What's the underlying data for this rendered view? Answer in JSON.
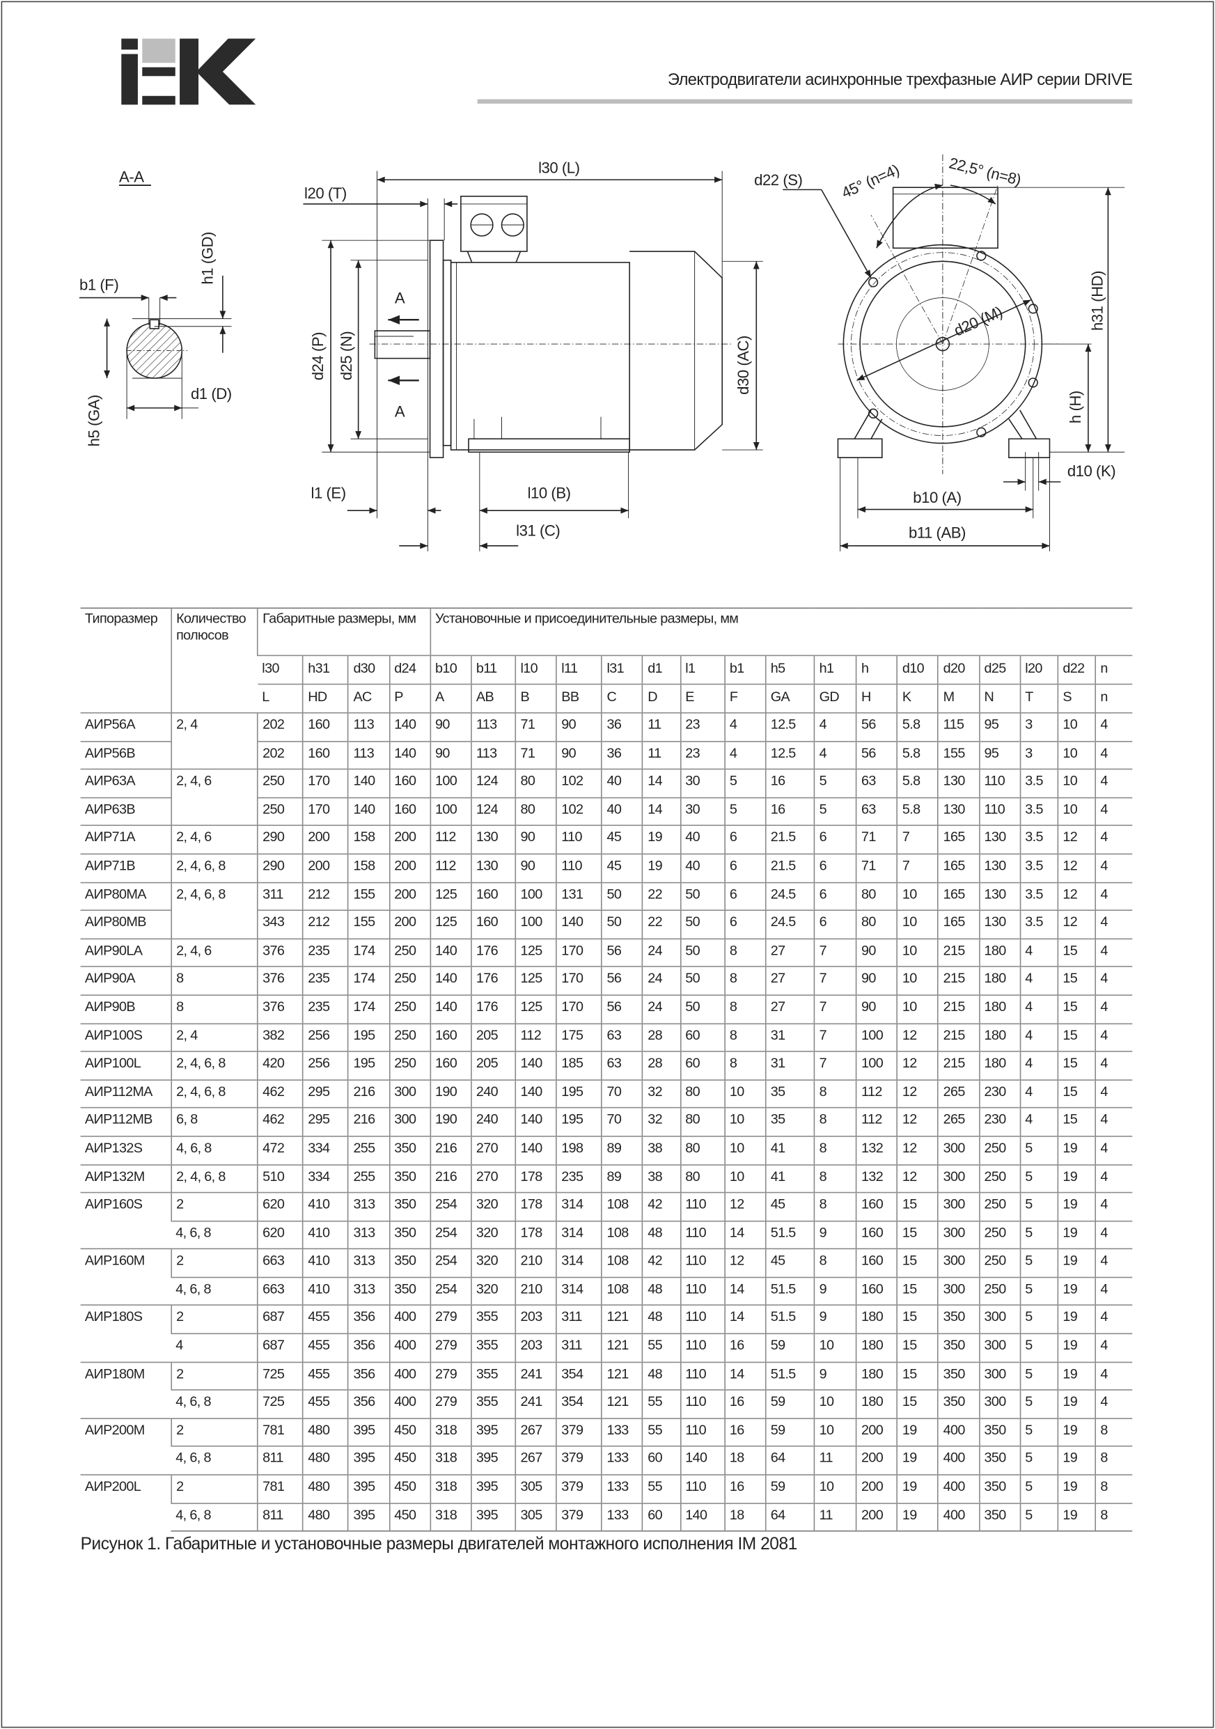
{
  "header": {
    "logo_text": "IEK",
    "title": "Электродвигатели асинхронные трехфазные АИР серии DRIVE",
    "accent_gray": "#bdbdbd"
  },
  "drawing": {
    "section_label": "A-A",
    "section": {
      "b1": "b1 (F)",
      "h1": "h1 (GD)",
      "d1": "d1 (D)",
      "h5": "h5 (GA)"
    },
    "side": {
      "l30": "l30 (L)",
      "l20": "l20 (T)",
      "d24": "d24 (P)",
      "d25": "d25 (N)",
      "d30": "d30 (AC)",
      "a_top": "A",
      "a_bottom": "A",
      "l1": "l1 (E)",
      "l10": "l10 (B)",
      "l31": "l31 (C)"
    },
    "front": {
      "d22": "d22  (S)",
      "angle45": "45° (n=4)",
      "angle22": "22,5° (n=8)",
      "d20": "d20 (M)",
      "h31": "h31 (HD)",
      "h": "h (H)",
      "d10": "d10 (K)",
      "b10": "b10 (A)",
      "b11": "b11 (AB)"
    }
  },
  "table": {
    "headers": {
      "type": "Типоразмер",
      "poles": "Количество полюсов",
      "overall": "Габаритные размеры, мм",
      "mounting": "Установочные и присоединительные размеры, мм"
    },
    "codes": [
      "l30",
      "h31",
      "d30",
      "d24",
      "b10",
      "b11",
      "l10",
      "l11",
      "l31",
      "d1",
      "l1",
      "b1",
      "h5",
      "h1",
      "h",
      "d10",
      "d20",
      "d25",
      "l20",
      "d22",
      "n"
    ],
    "letters": [
      "L",
      "HD",
      "AC",
      "P",
      "A",
      "AB",
      "B",
      "BB",
      "C",
      "D",
      "E",
      "F",
      "GA",
      "GD",
      "H",
      "K",
      "M",
      "N",
      "T",
      "S",
      "n"
    ],
    "rows": [
      {
        "type": "АИР56A",
        "poles": "2, 4",
        "v": [
          "202",
          "160",
          "113",
          "140",
          "90",
          "113",
          "71",
          "90",
          "36",
          "11",
          "23",
          "4",
          "12.5",
          "4",
          "56",
          "5.8",
          "115",
          "95",
          "3",
          "10",
          "4"
        ]
      },
      {
        "type": "АИР56B",
        "poles": "",
        "v": [
          "202",
          "160",
          "113",
          "140",
          "90",
          "113",
          "71",
          "90",
          "36",
          "11",
          "23",
          "4",
          "12.5",
          "4",
          "56",
          "5.8",
          "155",
          "95",
          "3",
          "10",
          "4"
        ]
      },
      {
        "type": "АИР63A",
        "poles": "2, 4, 6",
        "v": [
          "250",
          "170",
          "140",
          "160",
          "100",
          "124",
          "80",
          "102",
          "40",
          "14",
          "30",
          "5",
          "16",
          "5",
          "63",
          "5.8",
          "130",
          "110",
          "3.5",
          "10",
          "4"
        ]
      },
      {
        "type": "АИР63B",
        "poles": "",
        "v": [
          "250",
          "170",
          "140",
          "160",
          "100",
          "124",
          "80",
          "102",
          "40",
          "14",
          "30",
          "5",
          "16",
          "5",
          "63",
          "5.8",
          "130",
          "110",
          "3.5",
          "10",
          "4"
        ]
      },
      {
        "type": "АИР71A",
        "poles": "2, 4, 6",
        "v": [
          "290",
          "200",
          "158",
          "200",
          "112",
          "130",
          "90",
          "110",
          "45",
          "19",
          "40",
          "6",
          "21.5",
          "6",
          "71",
          "7",
          "165",
          "130",
          "3.5",
          "12",
          "4"
        ]
      },
      {
        "type": "АИР71B",
        "poles": "2, 4, 6, 8",
        "v": [
          "290",
          "200",
          "158",
          "200",
          "112",
          "130",
          "90",
          "110",
          "45",
          "19",
          "40",
          "6",
          "21.5",
          "6",
          "71",
          "7",
          "165",
          "130",
          "3.5",
          "12",
          "4"
        ]
      },
      {
        "type": "АИР80MA",
        "poles": "2, 4, 6, 8",
        "v": [
          "311",
          "212",
          "155",
          "200",
          "125",
          "160",
          "100",
          "131",
          "50",
          "22",
          "50",
          "6",
          "24.5",
          "6",
          "80",
          "10",
          "165",
          "130",
          "3.5",
          "12",
          "4"
        ]
      },
      {
        "type": "АИР80MB",
        "poles": "",
        "v": [
          "343",
          "212",
          "155",
          "200",
          "125",
          "160",
          "100",
          "140",
          "50",
          "22",
          "50",
          "6",
          "24.5",
          "6",
          "80",
          "10",
          "165",
          "130",
          "3.5",
          "12",
          "4"
        ]
      },
      {
        "type": "АИР90LA",
        "poles": "2, 4, 6",
        "v": [
          "376",
          "235",
          "174",
          "250",
          "140",
          "176",
          "125",
          "170",
          "56",
          "24",
          "50",
          "8",
          "27",
          "7",
          "90",
          "10",
          "215",
          "180",
          "4",
          "15",
          "4"
        ]
      },
      {
        "type": "АИР90A",
        "poles": "8",
        "v": [
          "376",
          "235",
          "174",
          "250",
          "140",
          "176",
          "125",
          "170",
          "56",
          "24",
          "50",
          "8",
          "27",
          "7",
          "90",
          "10",
          "215",
          "180",
          "4",
          "15",
          "4"
        ]
      },
      {
        "type": "АИР90B",
        "poles": "8",
        "v": [
          "376",
          "235",
          "174",
          "250",
          "140",
          "176",
          "125",
          "170",
          "56",
          "24",
          "50",
          "8",
          "27",
          "7",
          "90",
          "10",
          "215",
          "180",
          "4",
          "15",
          "4"
        ]
      },
      {
        "type": "АИР100S",
        "poles": "2, 4",
        "v": [
          "382",
          "256",
          "195",
          "250",
          "160",
          "205",
          "112",
          "175",
          "63",
          "28",
          "60",
          "8",
          "31",
          "7",
          "100",
          "12",
          "215",
          "180",
          "4",
          "15",
          "4"
        ]
      },
      {
        "type": "АИР100L",
        "poles": "2, 4, 6, 8",
        "v": [
          "420",
          "256",
          "195",
          "250",
          "160",
          "205",
          "140",
          "185",
          "63",
          "28",
          "60",
          "8",
          "31",
          "7",
          "100",
          "12",
          "215",
          "180",
          "4",
          "15",
          "4"
        ]
      },
      {
        "type": "АИР112MA",
        "poles": "2, 4, 6, 8",
        "v": [
          "462",
          "295",
          "216",
          "300",
          "190",
          "240",
          "140",
          "195",
          "70",
          "32",
          "80",
          "10",
          "35",
          "8",
          "112",
          "12",
          "265",
          "230",
          "4",
          "15",
          "4"
        ]
      },
      {
        "type": "АИР112MB",
        "poles": "6, 8",
        "v": [
          "462",
          "295",
          "216",
          "300",
          "190",
          "240",
          "140",
          "195",
          "70",
          "32",
          "80",
          "10",
          "35",
          "8",
          "112",
          "12",
          "265",
          "230",
          "4",
          "15",
          "4"
        ]
      },
      {
        "type": "АИР132S",
        "poles": "4, 6, 8",
        "v": [
          "472",
          "334",
          "255",
          "350",
          "216",
          "270",
          "140",
          "198",
          "89",
          "38",
          "80",
          "10",
          "41",
          "8",
          "132",
          "12",
          "300",
          "250",
          "5",
          "19",
          "4"
        ]
      },
      {
        "type": "АИР132M",
        "poles": "2, 4, 6, 8",
        "v": [
          "510",
          "334",
          "255",
          "350",
          "216",
          "270",
          "178",
          "235",
          "89",
          "38",
          "80",
          "10",
          "41",
          "8",
          "132",
          "12",
          "300",
          "250",
          "5",
          "19",
          "4"
        ]
      },
      {
        "type": "АИР160S",
        "poles": "2",
        "v": [
          "620",
          "410",
          "313",
          "350",
          "254",
          "320",
          "178",
          "314",
          "108",
          "42",
          "110",
          "12",
          "45",
          "8",
          "160",
          "15",
          "300",
          "250",
          "5",
          "19",
          "4"
        ]
      },
      {
        "type": "",
        "poles": "4, 6, 8",
        "v": [
          "620",
          "410",
          "313",
          "350",
          "254",
          "320",
          "178",
          "314",
          "108",
          "48",
          "110",
          "14",
          "51.5",
          "9",
          "160",
          "15",
          "300",
          "250",
          "5",
          "19",
          "4"
        ]
      },
      {
        "type": "АИР160M",
        "poles": "2",
        "v": [
          "663",
          "410",
          "313",
          "350",
          "254",
          "320",
          "210",
          "314",
          "108",
          "42",
          "110",
          "12",
          "45",
          "8",
          "160",
          "15",
          "300",
          "250",
          "5",
          "19",
          "4"
        ]
      },
      {
        "type": "",
        "poles": "4, 6, 8",
        "v": [
          "663",
          "410",
          "313",
          "350",
          "254",
          "320",
          "210",
          "314",
          "108",
          "48",
          "110",
          "14",
          "51.5",
          "9",
          "160",
          "15",
          "300",
          "250",
          "5",
          "19",
          "4"
        ]
      },
      {
        "type": "АИР180S",
        "poles": "2",
        "v": [
          "687",
          "455",
          "356",
          "400",
          "279",
          "355",
          "203",
          "311",
          "121",
          "48",
          "110",
          "14",
          "51.5",
          "9",
          "180",
          "15",
          "350",
          "300",
          "5",
          "19",
          "4"
        ]
      },
      {
        "type": "",
        "poles": "4",
        "v": [
          "687",
          "455",
          "356",
          "400",
          "279",
          "355",
          "203",
          "311",
          "121",
          "55",
          "110",
          "16",
          "59",
          "10",
          "180",
          "15",
          "350",
          "300",
          "5",
          "19",
          "4"
        ]
      },
      {
        "type": "АИР180M",
        "poles": "2",
        "v": [
          "725",
          "455",
          "356",
          "400",
          "279",
          "355",
          "241",
          "354",
          "121",
          "48",
          "110",
          "14",
          "51.5",
          "9",
          "180",
          "15",
          "350",
          "300",
          "5",
          "19",
          "4"
        ]
      },
      {
        "type": "",
        "poles": "4, 6, 8",
        "v": [
          "725",
          "455",
          "356",
          "400",
          "279",
          "355",
          "241",
          "354",
          "121",
          "55",
          "110",
          "16",
          "59",
          "10",
          "180",
          "15",
          "350",
          "300",
          "5",
          "19",
          "4"
        ]
      },
      {
        "type": "АИР200M",
        "poles": "2",
        "v": [
          "781",
          "480",
          "395",
          "450",
          "318",
          "395",
          "267",
          "379",
          "133",
          "55",
          "110",
          "16",
          "59",
          "10",
          "200",
          "19",
          "400",
          "350",
          "5",
          "19",
          "8"
        ]
      },
      {
        "type": "",
        "poles": "4, 6, 8",
        "v": [
          "811",
          "480",
          "395",
          "450",
          "318",
          "395",
          "267",
          "379",
          "133",
          "60",
          "140",
          "18",
          "64",
          "11",
          "200",
          "19",
          "400",
          "350",
          "5",
          "19",
          "8"
        ]
      },
      {
        "type": "АИР200L",
        "poles": "2",
        "v": [
          "781",
          "480",
          "395",
          "450",
          "318",
          "395",
          "305",
          "379",
          "133",
          "55",
          "110",
          "16",
          "59",
          "10",
          "200",
          "19",
          "400",
          "350",
          "5",
          "19",
          "8"
        ]
      },
      {
        "type": "",
        "poles": "4, 6, 8",
        "v": [
          "811",
          "480",
          "395",
          "450",
          "318",
          "395",
          "305",
          "379",
          "133",
          "60",
          "140",
          "18",
          "64",
          "11",
          "200",
          "19",
          "400",
          "350",
          "5",
          "19",
          "8"
        ]
      }
    ]
  },
  "caption": "Рисунок 1. Габаритные и установочные размеры двигателей монтажного исполнения IM 2081"
}
